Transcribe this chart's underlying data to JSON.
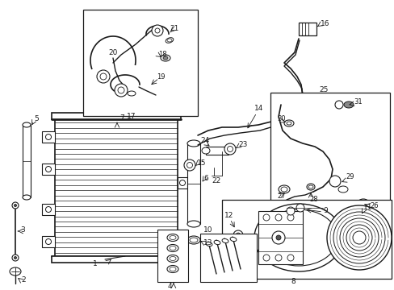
{
  "bg_color": "#ffffff",
  "line_color": "#1a1a1a",
  "text_color": "#1a1a1a",
  "fig_width": 4.89,
  "fig_height": 3.6,
  "dpi": 100
}
